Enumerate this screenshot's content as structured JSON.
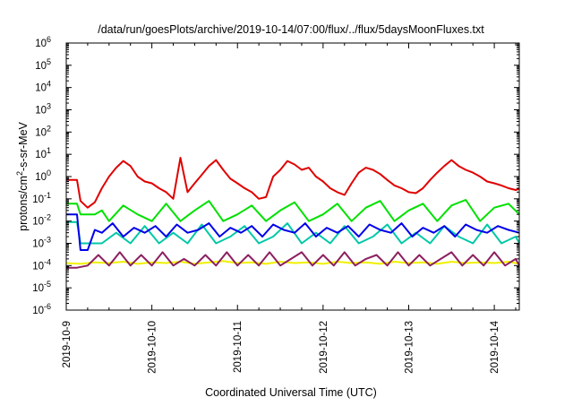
{
  "chart_data": {
    "type": "line",
    "title": "/data/run/goesPlots/archive/2019-10-14/07:00/flux/../flux/5daysMoonFluxes.txt",
    "xlabel": "Coordinated Universal Time (UTC)",
    "ylabel": {
      "base": "protons/cm",
      "sup": "2",
      "rest": "-s-sr-MeV"
    },
    "x_scale": "date",
    "xlim": [
      "2019-10-09T00:00",
      "2019-10-14T07:00"
    ],
    "x_ticks": [
      "2019-10-9",
      "2019-10-10",
      "2019-10-11",
      "2019-10-12",
      "2019-10-13",
      "2019-10-14"
    ],
    "y_scale": "log",
    "ylim": [
      1e-06,
      1000000.0
    ],
    "y_ticks": [
      {
        "base": "10",
        "exp": "-6",
        "value": 1e-06
      },
      {
        "base": "10",
        "exp": "-5",
        "value": 1e-05
      },
      {
        "base": "10",
        "exp": "-4",
        "value": 0.0001
      },
      {
        "base": "10",
        "exp": "-3",
        "value": 0.001
      },
      {
        "base": "10",
        "exp": "-2",
        "value": 0.01
      },
      {
        "base": "10",
        "exp": "-1",
        "value": 0.1
      },
      {
        "base": "10",
        "exp": "0",
        "value": 1
      },
      {
        "base": "10",
        "exp": "1",
        "value": 10
      },
      {
        "base": "10",
        "exp": "2",
        "value": 100
      },
      {
        "base": "10",
        "exp": "3",
        "value": 1000
      },
      {
        "base": "10",
        "exp": "4",
        "value": 10000
      },
      {
        "base": "10",
        "exp": "5",
        "value": 100000
      },
      {
        "base": "10",
        "exp": "6",
        "value": 1000000
      }
    ],
    "grid": false,
    "legend": "none",
    "series": [
      {
        "color": "#e00000",
        "x": [
          "2019-10-09T00:00",
          "2019-10-09T03:00",
          "2019-10-09T04:00",
          "2019-10-09T06:00",
          "2019-10-09T08:00",
          "2019-10-09T10:00",
          "2019-10-09T12:00",
          "2019-10-09T14:00",
          "2019-10-09T16:00",
          "2019-10-09T18:00",
          "2019-10-09T20:00",
          "2019-10-09T22:00",
          "2019-10-10T00:00",
          "2019-10-10T02:00",
          "2019-10-10T04:00",
          "2019-10-10T06:00",
          "2019-10-10T08:00",
          "2019-10-10T10:00",
          "2019-10-10T12:00",
          "2019-10-10T14:00",
          "2019-10-10T16:00",
          "2019-10-10T18:00",
          "2019-10-10T20:00",
          "2019-10-10T22:00",
          "2019-10-11T00:00",
          "2019-10-11T02:00",
          "2019-10-11T04:00",
          "2019-10-11T06:00",
          "2019-10-11T08:00",
          "2019-10-11T10:00",
          "2019-10-11T12:00",
          "2019-10-11T14:00",
          "2019-10-11T16:00",
          "2019-10-11T18:00",
          "2019-10-11T20:00",
          "2019-10-11T22:00",
          "2019-10-12T00:00",
          "2019-10-12T02:00",
          "2019-10-12T04:00",
          "2019-10-12T06:00",
          "2019-10-12T08:00",
          "2019-10-12T10:00",
          "2019-10-12T12:00",
          "2019-10-12T14:00",
          "2019-10-12T16:00",
          "2019-10-12T18:00",
          "2019-10-12T20:00",
          "2019-10-12T22:00",
          "2019-10-13T00:00",
          "2019-10-13T02:00",
          "2019-10-13T04:00",
          "2019-10-13T06:00",
          "2019-10-13T08:00",
          "2019-10-13T10:00",
          "2019-10-13T12:00",
          "2019-10-13T14:00",
          "2019-10-13T16:00",
          "2019-10-13T18:00",
          "2019-10-13T20:00",
          "2019-10-13T22:00",
          "2019-10-14T00:00",
          "2019-10-14T02:00",
          "2019-10-14T04:00",
          "2019-10-14T06:00",
          "2019-10-14T07:00"
        ],
        "values": [
          0.7,
          0.7,
          0.08,
          0.04,
          0.07,
          0.3,
          1.0,
          2.5,
          5.0,
          3.0,
          1.0,
          0.6,
          0.5,
          0.3,
          0.2,
          0.1,
          7.0,
          0.2,
          0.5,
          1.2,
          3.0,
          5.5,
          2.0,
          0.8,
          0.5,
          0.3,
          0.2,
          0.1,
          0.12,
          1.0,
          2.0,
          5.0,
          3.5,
          2.0,
          2.5,
          1.0,
          0.6,
          0.3,
          0.2,
          0.15,
          0.5,
          1.5,
          2.5,
          2.0,
          1.3,
          0.7,
          0.4,
          0.3,
          0.2,
          0.18,
          0.3,
          0.7,
          1.5,
          3.0,
          5.5,
          3.0,
          2.0,
          1.5,
          1.0,
          0.6,
          0.5,
          0.4,
          0.3,
          0.25,
          0.28
        ]
      },
      {
        "color": "#00e000",
        "x": [
          "2019-10-09T00:00",
          "2019-10-09T03:00",
          "2019-10-09T04:00",
          "2019-10-09T08:00",
          "2019-10-09T10:00",
          "2019-10-09T12:00",
          "2019-10-09T16:00",
          "2019-10-09T20:00",
          "2019-10-10T00:00",
          "2019-10-10T04:00",
          "2019-10-10T08:00",
          "2019-10-10T12:00",
          "2019-10-10T16:00",
          "2019-10-10T20:00",
          "2019-10-11T00:00",
          "2019-10-11T04:00",
          "2019-10-11T08:00",
          "2019-10-11T12:00",
          "2019-10-11T16:00",
          "2019-10-11T20:00",
          "2019-10-12T00:00",
          "2019-10-12T04:00",
          "2019-10-12T08:00",
          "2019-10-12T12:00",
          "2019-10-12T16:00",
          "2019-10-12T20:00",
          "2019-10-13T00:00",
          "2019-10-13T04:00",
          "2019-10-13T08:00",
          "2019-10-13T12:00",
          "2019-10-13T16:00",
          "2019-10-13T20:00",
          "2019-10-14T00:00",
          "2019-10-14T04:00",
          "2019-10-14T07:00"
        ],
        "values": [
          0.06,
          0.06,
          0.02,
          0.02,
          0.03,
          0.01,
          0.05,
          0.02,
          0.01,
          0.06,
          0.01,
          0.03,
          0.08,
          0.01,
          0.02,
          0.05,
          0.01,
          0.03,
          0.07,
          0.01,
          0.02,
          0.06,
          0.01,
          0.04,
          0.08,
          0.01,
          0.03,
          0.06,
          0.01,
          0.05,
          0.09,
          0.01,
          0.04,
          0.06,
          0.02
        ]
      },
      {
        "color": "#00c8a8",
        "x": [
          "2019-10-09T00:00",
          "2019-10-09T03:00",
          "2019-10-09T04:00",
          "2019-10-09T08:00",
          "2019-10-09T10:00",
          "2019-10-09T14:00",
          "2019-10-09T18:00",
          "2019-10-09T22:00",
          "2019-10-10T02:00",
          "2019-10-10T06:00",
          "2019-10-10T10:00",
          "2019-10-10T14:00",
          "2019-10-10T18:00",
          "2019-10-10T22:00",
          "2019-10-11T02:00",
          "2019-10-11T06:00",
          "2019-10-11T10:00",
          "2019-10-11T14:00",
          "2019-10-11T18:00",
          "2019-10-11T22:00",
          "2019-10-12T02:00",
          "2019-10-12T06:00",
          "2019-10-12T10:00",
          "2019-10-12T14:00",
          "2019-10-12T18:00",
          "2019-10-12T22:00",
          "2019-10-13T02:00",
          "2019-10-13T06:00",
          "2019-10-13T10:00",
          "2019-10-13T14:00",
          "2019-10-13T18:00",
          "2019-10-13T22:00",
          "2019-10-14T02:00",
          "2019-10-14T06:00",
          "2019-10-14T07:00"
        ],
        "values": [
          0.009,
          0.009,
          0.001,
          0.001,
          0.001,
          0.003,
          0.001,
          0.006,
          0.001,
          0.003,
          0.001,
          0.007,
          0.001,
          0.002,
          0.006,
          0.001,
          0.002,
          0.008,
          0.001,
          0.003,
          0.001,
          0.006,
          0.001,
          0.002,
          0.007,
          0.001,
          0.003,
          0.001,
          0.006,
          0.002,
          0.001,
          0.007,
          0.001,
          0.002,
          0.001
        ]
      },
      {
        "color": "#0000e8",
        "x": [
          "2019-10-09T00:00",
          "2019-10-09T03:00",
          "2019-10-09T04:00",
          "2019-10-09T06:00",
          "2019-10-09T08:00",
          "2019-10-09T10:00",
          "2019-10-09T13:00",
          "2019-10-09T16:00",
          "2019-10-09T19:00",
          "2019-10-09T22:00",
          "2019-10-10T01:00",
          "2019-10-10T04:00",
          "2019-10-10T07:00",
          "2019-10-10T10:00",
          "2019-10-10T13:00",
          "2019-10-10T16:00",
          "2019-10-10T19:00",
          "2019-10-10T22:00",
          "2019-10-11T01:00",
          "2019-10-11T04:00",
          "2019-10-11T07:00",
          "2019-10-11T10:00",
          "2019-10-11T13:00",
          "2019-10-11T16:00",
          "2019-10-11T19:00",
          "2019-10-11T22:00",
          "2019-10-12T01:00",
          "2019-10-12T04:00",
          "2019-10-12T07:00",
          "2019-10-12T10:00",
          "2019-10-12T13:00",
          "2019-10-12T16:00",
          "2019-10-12T19:00",
          "2019-10-12T22:00",
          "2019-10-13T01:00",
          "2019-10-13T04:00",
          "2019-10-13T07:00",
          "2019-10-13T10:00",
          "2019-10-13T13:00",
          "2019-10-13T16:00",
          "2019-10-13T19:00",
          "2019-10-13T22:00",
          "2019-10-14T01:00",
          "2019-10-14T04:00",
          "2019-10-14T07:00"
        ],
        "values": [
          0.02,
          0.02,
          0.0005,
          0.0005,
          0.004,
          0.003,
          0.008,
          0.002,
          0.005,
          0.003,
          0.006,
          0.002,
          0.007,
          0.003,
          0.004,
          0.008,
          0.002,
          0.005,
          0.003,
          0.006,
          0.002,
          0.007,
          0.004,
          0.003,
          0.008,
          0.002,
          0.005,
          0.003,
          0.006,
          0.002,
          0.007,
          0.004,
          0.003,
          0.008,
          0.002,
          0.005,
          0.003,
          0.006,
          0.002,
          0.007,
          0.004,
          0.003,
          0.006,
          0.004,
          0.003
        ]
      },
      {
        "color": "#f0f000",
        "x": [
          "2019-10-09T00:00",
          "2019-10-09T04:00",
          "2019-10-09T08:00",
          "2019-10-09T12:00",
          "2019-10-09T16:00",
          "2019-10-09T20:00",
          "2019-10-10T00:00",
          "2019-10-10T04:00",
          "2019-10-10T08:00",
          "2019-10-10T12:00",
          "2019-10-10T16:00",
          "2019-10-10T20:00",
          "2019-10-11T00:00",
          "2019-10-11T04:00",
          "2019-10-11T08:00",
          "2019-10-11T12:00",
          "2019-10-11T16:00",
          "2019-10-11T20:00",
          "2019-10-12T00:00",
          "2019-10-12T04:00",
          "2019-10-12T08:00",
          "2019-10-12T12:00",
          "2019-10-12T16:00",
          "2019-10-12T20:00",
          "2019-10-13T00:00",
          "2019-10-13T04:00",
          "2019-10-13T08:00",
          "2019-10-13T12:00",
          "2019-10-13T16:00",
          "2019-10-13T20:00",
          "2019-10-14T00:00",
          "2019-10-14T04:00",
          "2019-10-14T07:00"
        ],
        "values": [
          0.00013,
          0.00012,
          0.00014,
          0.00013,
          0.00015,
          0.00012,
          0.00014,
          0.00013,
          0.00015,
          0.00012,
          0.00014,
          0.00016,
          0.00013,
          0.00014,
          0.00012,
          0.00015,
          0.00013,
          0.00014,
          0.00012,
          0.00015,
          0.00013,
          0.00014,
          0.00012,
          0.00015,
          0.00013,
          0.00014,
          0.00012,
          0.00015,
          0.00013,
          0.00014,
          0.00013,
          0.00015,
          0.00012
        ]
      },
      {
        "color": "#8b2060",
        "x": [
          "2019-10-09T00:00",
          "2019-10-09T03:00",
          "2019-10-09T06:00",
          "2019-10-09T09:00",
          "2019-10-09T12:00",
          "2019-10-09T15:00",
          "2019-10-09T18:00",
          "2019-10-09T21:00",
          "2019-10-10T00:00",
          "2019-10-10T03:00",
          "2019-10-10T06:00",
          "2019-10-10T09:00",
          "2019-10-10T12:00",
          "2019-10-10T15:00",
          "2019-10-10T18:00",
          "2019-10-10T21:00",
          "2019-10-11T00:00",
          "2019-10-11T03:00",
          "2019-10-11T06:00",
          "2019-10-11T09:00",
          "2019-10-11T12:00",
          "2019-10-11T15:00",
          "2019-10-11T18:00",
          "2019-10-11T21:00",
          "2019-10-12T00:00",
          "2019-10-12T03:00",
          "2019-10-12T06:00",
          "2019-10-12T09:00",
          "2019-10-12T12:00",
          "2019-10-12T15:00",
          "2019-10-12T18:00",
          "2019-10-12T21:00",
          "2019-10-13T00:00",
          "2019-10-13T03:00",
          "2019-10-13T06:00",
          "2019-10-13T09:00",
          "2019-10-13T12:00",
          "2019-10-13T15:00",
          "2019-10-13T18:00",
          "2019-10-13T21:00",
          "2019-10-14T00:00",
          "2019-10-14T03:00",
          "2019-10-14T06:00",
          "2019-10-14T07:00"
        ],
        "values": [
          8e-05,
          8e-05,
          0.0001,
          0.0003,
          0.0001,
          0.0004,
          0.0001,
          0.0003,
          0.0001,
          0.0004,
          0.0001,
          0.0002,
          0.0001,
          0.0003,
          0.0001,
          0.0004,
          0.0001,
          0.0003,
          0.0001,
          0.0004,
          0.0001,
          0.0002,
          0.0004,
          0.0001,
          0.0003,
          0.0001,
          0.0004,
          0.0001,
          0.0002,
          0.0003,
          0.0001,
          0.0004,
          0.0001,
          0.0003,
          0.0001,
          0.0002,
          0.0004,
          0.0001,
          0.0003,
          0.0001,
          0.0004,
          0.0001,
          0.0002,
          0.0001
        ]
      }
    ]
  }
}
